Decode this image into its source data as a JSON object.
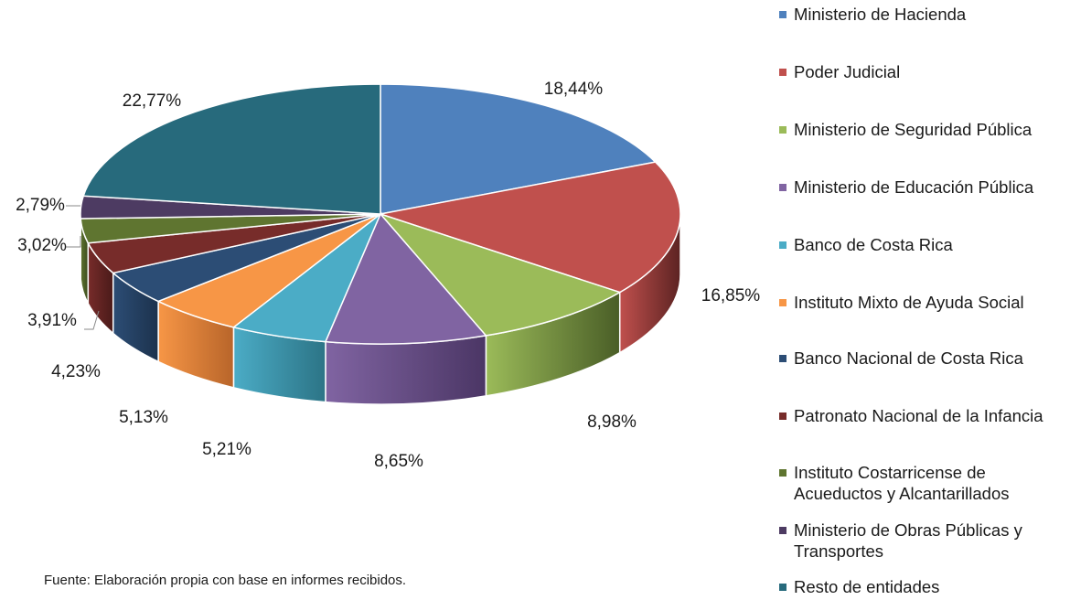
{
  "chart_data": {
    "type": "pie",
    "style": "3d-exploded-pie",
    "legend_position": "right",
    "slices": [
      {
        "label": "Ministerio de Hacienda",
        "value": 18.44,
        "value_text": "18,44%",
        "color": "#4F81BD",
        "side_color": "#3a6290"
      },
      {
        "label": "Poder Judicial",
        "value": 16.85,
        "value_text": "16,85%",
        "color": "#C0504D",
        "side_color": "#5c2322"
      },
      {
        "label": "Ministerio de Seguridad Pública",
        "value": 8.98,
        "value_text": "8,98%",
        "color": "#9BBB59",
        "side_color": "#4a5e27"
      },
      {
        "label": "Ministerio de Educación Pública",
        "value": 8.65,
        "value_text": "8,65%",
        "color": "#8064A2",
        "side_color": "#4b3665"
      },
      {
        "label": "Banco de Costa Rica",
        "value": 5.21,
        "value_text": "5,21%",
        "color": "#4BACC6",
        "side_color": "#2c7486"
      },
      {
        "label": "Instituto Mixto de Ayuda Social",
        "value": 5.13,
        "value_text": "5,13%",
        "color": "#F79646",
        "side_color": "#b8652a"
      },
      {
        "label": "Banco Nacional de Costa Rica",
        "value": 4.23,
        "value_text": "4,23%",
        "color": "#2C4D75",
        "side_color": "#1c324d"
      },
      {
        "label": "Patronato Nacional de la Infancia",
        "value": 3.91,
        "value_text": "3,91%",
        "color": "#772C2A",
        "side_color": "#4a1a19"
      },
      {
        "label": "Instituto Costarricense de\nAcueductos y Alcantarillados",
        "value": 3.02,
        "value_text": "3,02%",
        "color": "#5F7530",
        "side_color": "#3c4b1e"
      },
      {
        "label": "Ministerio de Obras Públicas y\nTransportes",
        "value": 2.79,
        "value_text": "2,79%",
        "color": "#4D3B62",
        "side_color": "#30243e"
      },
      {
        "label": "Resto de entidades",
        "value": 22.77,
        "value_text": "22,77%",
        "color": "#276A7C",
        "side_color": "#1a4955"
      }
    ]
  },
  "footnote": "Fuente: Elaboración propia con base en informes recibidos."
}
